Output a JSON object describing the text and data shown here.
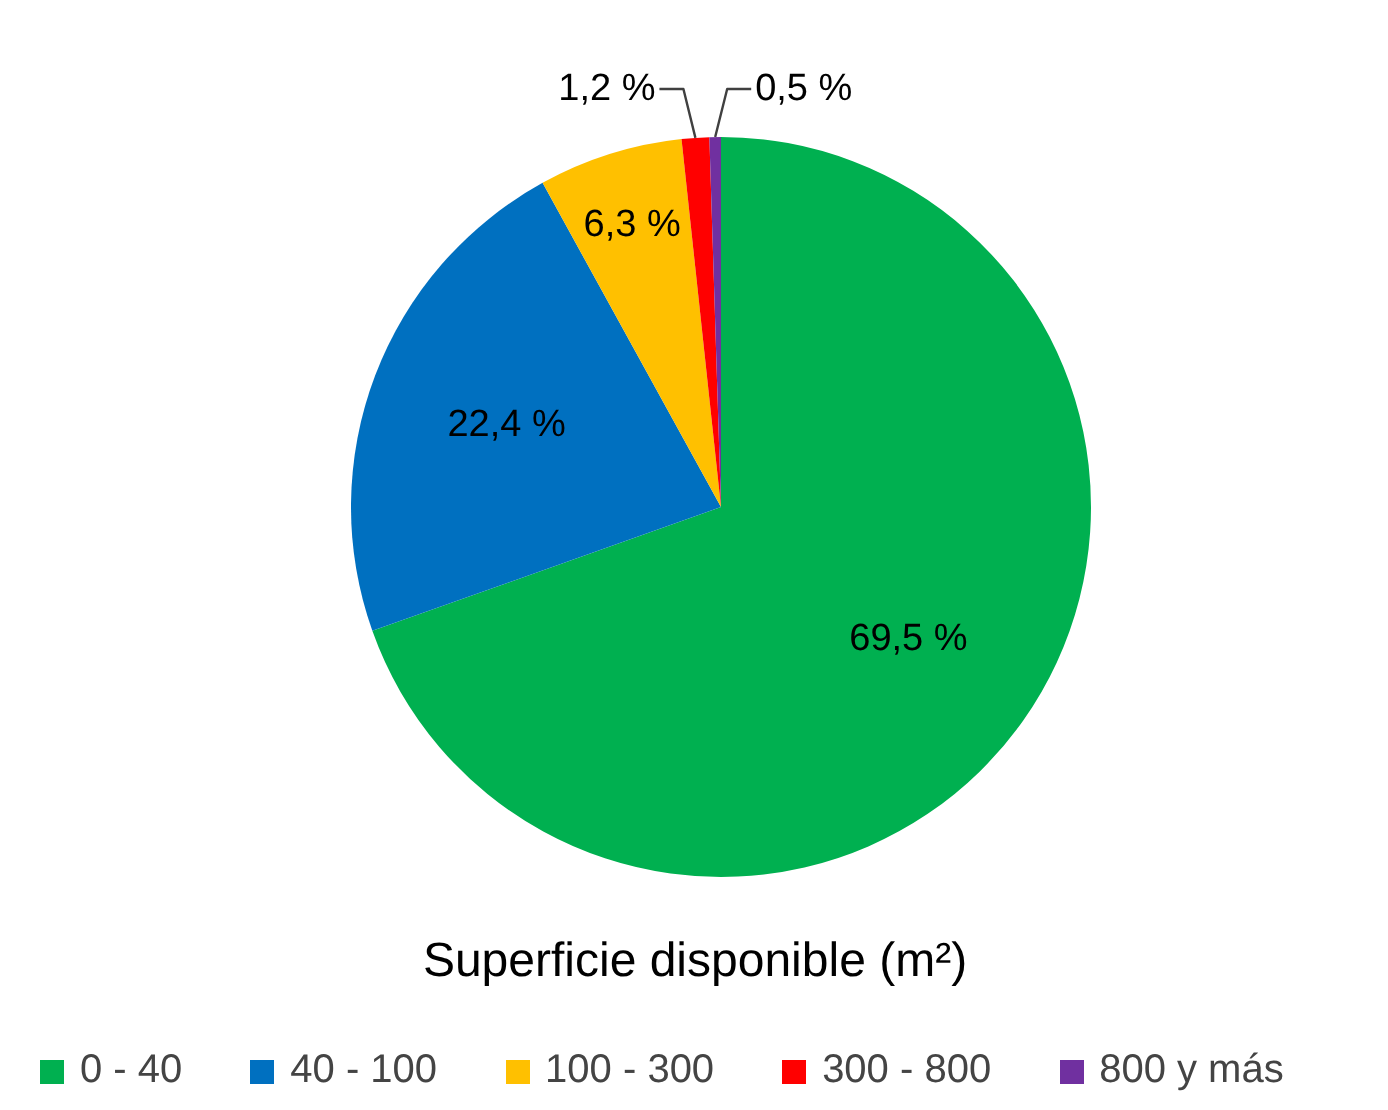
{
  "chart_data": {
    "type": "pie",
    "title": "Superficie disponible (m²)",
    "categories": [
      "0 - 40",
      "40 - 100",
      "100 - 300",
      "300 - 800",
      "800 y más"
    ],
    "values": [
      69.5,
      22.4,
      6.3,
      1.2,
      0.5
    ],
    "colors": [
      "#00b050",
      "#0070c0",
      "#ffc000",
      "#ff0000",
      "#7030a0"
    ],
    "value_labels": [
      "69,5 %",
      "22,4 %",
      "6,3 %",
      "1,2 %",
      "0,5 %"
    ],
    "legend": "bottom"
  }
}
